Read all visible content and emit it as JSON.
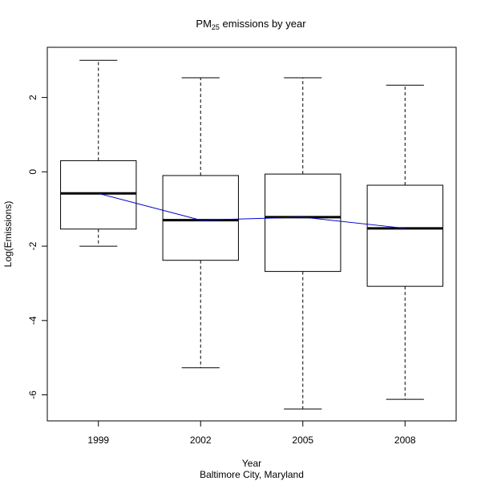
{
  "chart_data": {
    "type": "box",
    "title_main": "PM",
    "title_sub": "25",
    "title_rest": " emissions by year",
    "xlabel": "Year",
    "subtitle": "Baltimore City, Maryland",
    "ylabel": "Log(Emissions)",
    "ylim": [
      -6.7,
      3.35
    ],
    "yticks": [
      {
        "value": 2,
        "label": "2"
      },
      {
        "value": 0,
        "label": "0"
      },
      {
        "value": -2,
        "label": "-2"
      },
      {
        "value": -4,
        "label": "-4"
      },
      {
        "value": -6,
        "label": "-6"
      }
    ],
    "categories": [
      "1999",
      "2002",
      "2005",
      "2008"
    ],
    "boxes": [
      {
        "category": "1999",
        "whisker_low": -2.0,
        "q1": -1.54,
        "median": -0.58,
        "q3": 0.3,
        "whisker_high": 3.0
      },
      {
        "category": "2002",
        "whisker_low": -5.27,
        "q1": -2.38,
        "median": -1.3,
        "q3": -0.1,
        "whisker_high": 2.53
      },
      {
        "category": "2005",
        "whisker_low": -6.38,
        "q1": -2.68,
        "median": -1.22,
        "q3": -0.06,
        "whisker_high": 2.53
      },
      {
        "category": "2008",
        "whisker_low": -6.12,
        "q1": -3.08,
        "median": -1.52,
        "q3": -0.36,
        "whisker_high": 2.33
      }
    ],
    "median_line_color": "#0000cc",
    "box_color": "#000000",
    "grid": false
  }
}
